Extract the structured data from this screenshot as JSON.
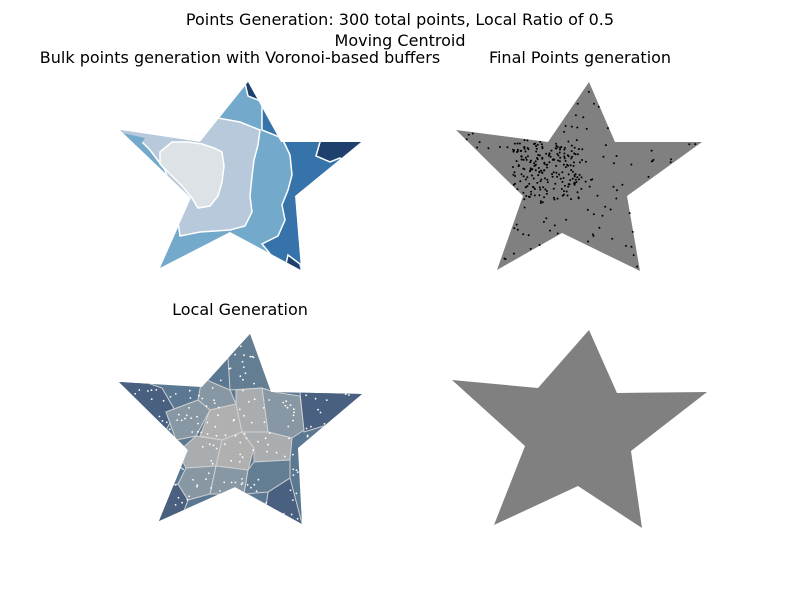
{
  "figure": {
    "suptitle_line1": "Points Generation: 300 total points, Local Ratio of 0.5",
    "suptitle_line2": "Moving Centroid"
  },
  "chart_data": [
    {
      "type": "other",
      "panel": "top-left",
      "title": "Bulk points generation with Voronoi-based buffers",
      "shape": "star",
      "buffer_colors": [
        "#dde2e6",
        "#b8c9db",
        "#73a9cb",
        "#3573aa",
        "#1f3f6c"
      ],
      "edge_color": "#ffffff"
    },
    {
      "type": "scatter",
      "panel": "top-right",
      "title": "Final Points generation",
      "shape": "star",
      "fill_color": "#808080",
      "point_color": "#000000",
      "total_points": 300
    },
    {
      "type": "other",
      "panel": "bottom-left",
      "title": "Local Generation",
      "shape": "star",
      "cell_colors": [
        "#4a6080",
        "#5b7892",
        "#8797a3",
        "#a9adb0",
        "#b0b0b0"
      ],
      "point_color": "#ffffff"
    },
    {
      "type": "other",
      "panel": "bottom-right",
      "title": "",
      "shape": "star",
      "fill_color": "#808080"
    }
  ]
}
